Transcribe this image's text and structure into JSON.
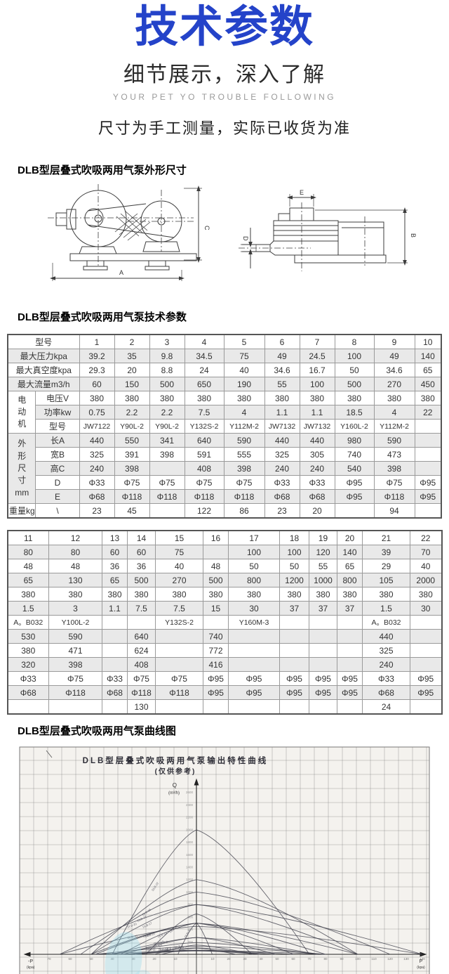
{
  "header": {
    "title": "技术参数",
    "subtitle": "细节展示，深入了解",
    "tagline": "YOUR PET YO TROUBLE FOLLOWING",
    "note": "尺寸为手工测量，实际已收货为准"
  },
  "accent_color": "#2443c9",
  "sections": {
    "dimensions_heading": "DLB型层叠式吹吸两用气泵外形尺寸",
    "params_heading": "DLB型层叠式吹吸两用气泵技术参数",
    "curve_heading": "DLB型层叠式吹吸两用气泵曲线图"
  },
  "drawing_dims": {
    "a": "A",
    "b": "B",
    "c": "C",
    "d": "D",
    "e": "E"
  },
  "table1": {
    "rows": [
      {
        "label": "型号",
        "labelSpan": 2,
        "cells": [
          "1",
          "2",
          "3",
          "4",
          "5",
          "6",
          "7",
          "8",
          "9",
          "10"
        ]
      },
      {
        "label": "最大压力kpa",
        "labelSpan": 2,
        "cells": [
          "39.2",
          "35",
          "9.8",
          "34.5",
          "75",
          "49",
          "24.5",
          "100",
          "49",
          "140"
        ]
      },
      {
        "label": "最大真空度kpa",
        "labelSpan": 2,
        "cells": [
          "29.3",
          "20",
          "8.8",
          "24",
          "40",
          "34.6",
          "16.7",
          "50",
          "34.6",
          "65"
        ]
      },
      {
        "label": "最大流量m3/h",
        "labelSpan": 2,
        "cells": [
          "60",
          "150",
          "500",
          "650",
          "190",
          "55",
          "100",
          "500",
          "270",
          "450"
        ]
      },
      {
        "group": "电\n动\n机",
        "groupRows": 3,
        "label": "电压V",
        "cells": [
          "380",
          "380",
          "380",
          "380",
          "380",
          "380",
          "380",
          "380",
          "380",
          "380"
        ]
      },
      {
        "label": "功率kw",
        "cells": [
          "0.75",
          "2.2",
          "2.2",
          "7.5",
          "4",
          "1.1",
          "1.1",
          "18.5",
          "4",
          "22"
        ]
      },
      {
        "label": "型号",
        "small": true,
        "cells": [
          "JW7122",
          "Y90L-2",
          "Y90L-2",
          "Y132S-2",
          "Y112M-2",
          "JW7132",
          "JW7132",
          "Y160L-2",
          "Y112M-2",
          ""
        ]
      },
      {
        "group": "外\n形\n尺\n寸\nmm",
        "groupRows": 5,
        "label": "长A",
        "cells": [
          "440",
          "550",
          "341",
          "640",
          "590",
          "440",
          "440",
          "980",
          "590",
          ""
        ]
      },
      {
        "label": "宽B",
        "cells": [
          "325",
          "391",
          "398",
          "591",
          "555",
          "325",
          "305",
          "740",
          "473",
          ""
        ]
      },
      {
        "label": "高C",
        "cells": [
          "240",
          "398",
          "",
          "408",
          "398",
          "240",
          "240",
          "540",
          "398",
          ""
        ]
      },
      {
        "label": "D",
        "cells": [
          "Φ33",
          "Φ75",
          "Φ75",
          "Φ75",
          "Φ75",
          "Φ33",
          "Φ33",
          "Φ95",
          "Φ75",
          "Φ95"
        ]
      },
      {
        "label": "E",
        "cells": [
          "Φ68",
          "Φ118",
          "Φ118",
          "Φ118",
          "Φ118",
          "Φ68",
          "Φ68",
          "Φ95",
          "Φ118",
          "Φ95"
        ]
      },
      {
        "label": "重量kg",
        "label2": "\\",
        "cells": [
          "23",
          "45",
          "",
          "122",
          "86",
          "23",
          "20",
          "",
          "94",
          ""
        ]
      }
    ]
  },
  "table2": {
    "rows": [
      [
        "11",
        "12",
        "13",
        "14",
        "15",
        "16",
        "17",
        "18",
        "19",
        "20",
        "21",
        "22"
      ],
      [
        "80",
        "80",
        "60",
        "60",
        "75",
        "",
        "100",
        "100",
        "120",
        "140",
        "39",
        "70"
      ],
      [
        "48",
        "48",
        "36",
        "36",
        "40",
        "48",
        "50",
        "50",
        "55",
        "65",
        "29",
        "40"
      ],
      [
        "65",
        "130",
        "65",
        "500",
        "270",
        "500",
        "800",
        "1200",
        "1000",
        "800",
        "105",
        "2000"
      ],
      [
        "380",
        "380",
        "380",
        "380",
        "380",
        "380",
        "380",
        "380",
        "380",
        "380",
        "380",
        "380"
      ],
      [
        "1.5",
        "3",
        "1.1",
        "7.5",
        "7.5",
        "15",
        "30",
        "37",
        "37",
        "37",
        "1.5",
        "30"
      ],
      [
        "A。B032",
        "Y100L-2",
        "",
        "",
        "Y132S-2",
        "",
        "Y160M-3",
        "",
        "",
        "",
        "A。B032",
        ""
      ],
      [
        "530",
        "590",
        "",
        "640",
        "",
        "740",
        "",
        "",
        "",
        "",
        "440",
        ""
      ],
      [
        "380",
        "471",
        "",
        "624",
        "",
        "772",
        "",
        "",
        "",
        "",
        "325",
        ""
      ],
      [
        "320",
        "398",
        "",
        "408",
        "",
        "416",
        "",
        "",
        "",
        "",
        "240",
        ""
      ],
      [
        "Φ33",
        "Φ75",
        "Φ33",
        "Φ75",
        "Φ75",
        "Φ95",
        "Φ95",
        "Φ95",
        "Φ95",
        "Φ95",
        "Φ33",
        "Φ95"
      ],
      [
        "Φ68",
        "Φ118",
        "Φ68",
        "Φ118",
        "Φ118",
        "Φ95",
        "Φ95",
        "Φ95",
        "Φ95",
        "Φ95",
        "Φ68",
        "Φ95"
      ],
      [
        "",
        "",
        "",
        "130",
        "",
        "",
        "",
        "",
        "",
        "",
        "24",
        ""
      ]
    ]
  },
  "chart_data": {
    "type": "line",
    "title": "DLB型层叠式吹吸两用气泵输出特性曲线",
    "subtitle": "(仅供参考)",
    "ylabel": "Q",
    "ylabel_unit": "(m³/h)",
    "xlabel_negative": "-P",
    "xlabel_positive": "P",
    "axis_unit": "(kpa)",
    "grid": true,
    "xlim_kpa": [
      -70,
      145
    ],
    "ylim": [
      0,
      2800
    ],
    "x_ticks_negative": [
      10,
      20,
      30,
      40,
      50,
      60,
      70
    ],
    "x_ticks_positive": [
      10,
      20,
      30,
      40,
      50,
      60,
      70,
      80,
      90,
      100,
      110,
      120,
      130,
      140
    ],
    "y_ticks": [
      200,
      400,
      600,
      800,
      1000,
      1200,
      1400,
      1600,
      1800,
      2000,
      2200,
      2400,
      2600
    ],
    "series": [
      {
        "name": "DLB-1",
        "max_vacuum_kpa": 29.3,
        "max_flow_m3h": 60,
        "max_pressure_kpa": 39.2
      },
      {
        "name": "DLB-2",
        "max_vacuum_kpa": 20,
        "max_flow_m3h": 150,
        "max_pressure_kpa": 35
      },
      {
        "name": "DLB-3",
        "max_vacuum_kpa": 8.8,
        "max_flow_m3h": 500,
        "max_pressure_kpa": 9.8
      },
      {
        "name": "DLB-4",
        "max_vacuum_kpa": 24,
        "max_flow_m3h": 650,
        "max_pressure_kpa": 34.5
      },
      {
        "name": "DLB-5",
        "max_vacuum_kpa": 40,
        "max_flow_m3h": 190,
        "max_pressure_kpa": 75
      },
      {
        "name": "DLB-6",
        "max_vacuum_kpa": 34.6,
        "max_flow_m3h": 55,
        "max_pressure_kpa": 49
      },
      {
        "name": "DLB-7",
        "max_vacuum_kpa": 16.7,
        "max_flow_m3h": 100,
        "max_pressure_kpa": 24.5
      },
      {
        "name": "DLB-8",
        "max_vacuum_kpa": 50,
        "max_flow_m3h": 500,
        "max_pressure_kpa": 100
      },
      {
        "name": "DLB-9",
        "max_vacuum_kpa": 34.6,
        "max_flow_m3h": 270,
        "max_pressure_kpa": 49
      },
      {
        "name": "DLB-10",
        "max_vacuum_kpa": 65,
        "max_flow_m3h": 450,
        "max_pressure_kpa": 140
      },
      {
        "name": "DLB-11",
        "max_vacuum_kpa": 48,
        "max_flow_m3h": 65,
        "max_pressure_kpa": 80
      },
      {
        "name": "DLB-12",
        "max_vacuum_kpa": 48,
        "max_flow_m3h": 130,
        "max_pressure_kpa": 80
      },
      {
        "name": "DLB-13",
        "max_vacuum_kpa": 36,
        "max_flow_m3h": 65,
        "max_pressure_kpa": 60
      },
      {
        "name": "DLB-14",
        "max_vacuum_kpa": 36,
        "max_flow_m3h": 500,
        "max_pressure_kpa": 60
      },
      {
        "name": "DLB-15",
        "max_vacuum_kpa": 40,
        "max_flow_m3h": 270,
        "max_pressure_kpa": 75
      },
      {
        "name": "DLB-16",
        "max_vacuum_kpa": 48,
        "max_flow_m3h": 500,
        "max_pressure_kpa": null
      },
      {
        "name": "DLB-17",
        "max_vacuum_kpa": 50,
        "max_flow_m3h": 800,
        "max_pressure_kpa": 100
      },
      {
        "name": "DLB-18",
        "max_vacuum_kpa": 50,
        "max_flow_m3h": 1200,
        "max_pressure_kpa": 100
      },
      {
        "name": "DLB-19",
        "max_vacuum_kpa": 55,
        "max_flow_m3h": 1000,
        "max_pressure_kpa": 120
      },
      {
        "name": "DLB-20",
        "max_vacuum_kpa": 65,
        "max_flow_m3h": 800,
        "max_pressure_kpa": 140
      },
      {
        "name": "DLB-21",
        "max_vacuum_kpa": 29,
        "max_flow_m3h": 105,
        "max_pressure_kpa": 39
      },
      {
        "name": "DLB-22",
        "max_vacuum_kpa": 40,
        "max_flow_m3h": 2000,
        "max_pressure_kpa": 70
      }
    ]
  }
}
